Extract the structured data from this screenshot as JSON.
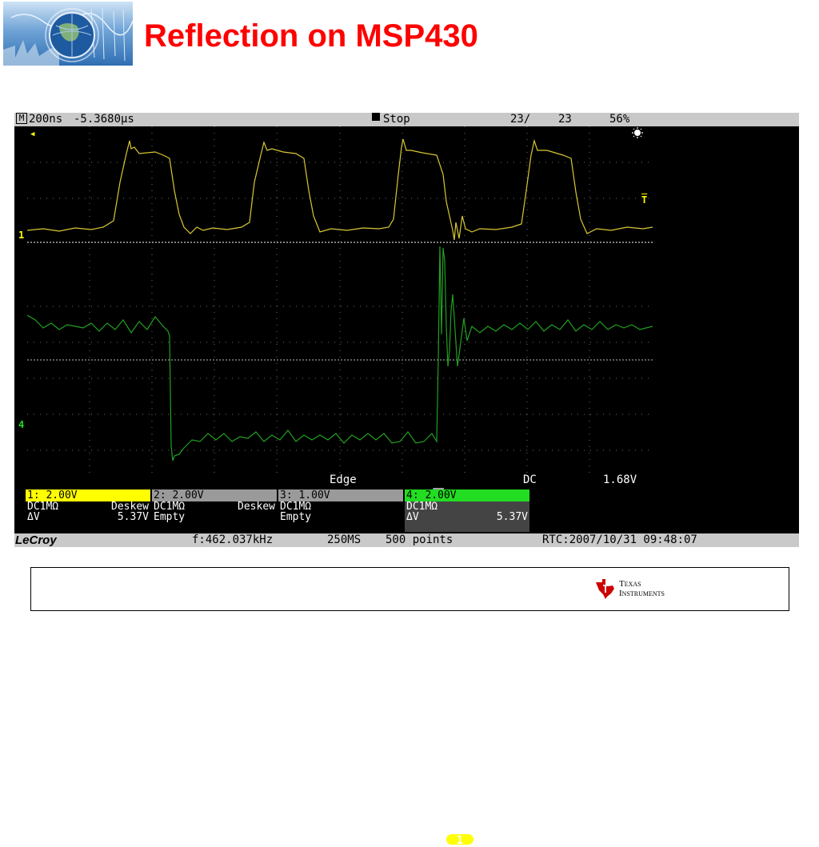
{
  "slide": {
    "title": "Reflection on MSP430"
  },
  "scope": {
    "top_bar": {
      "mode_icon": "M",
      "timebase": "200ns",
      "offset": "-5.3680µs",
      "status": "Stop",
      "sweeps": "23/",
      "sweeps_total": "23",
      "intensity": "56%"
    },
    "markers": {
      "ch1": "1",
      "ch4": "4",
      "trigger": "T"
    },
    "trigger": {
      "type": "Edge",
      "source": "1",
      "coupling": "DC",
      "level": "1.68V"
    },
    "channels": [
      {
        "header": "1: 2.00V",
        "line1_left": "DC1MΩ",
        "line1_right": "Deskew",
        "line2_left": "ΔV",
        "line2_right": "5.37V",
        "color": "#ffff00"
      },
      {
        "header": "2: 2.00V",
        "line1_left": "DC1MΩ",
        "line1_right": "Deskew",
        "line2_left": "Empty",
        "line2_right": "",
        "color": "#9a9a9a"
      },
      {
        "header": "3: 1.00V",
        "line1_left": "DC1MΩ",
        "line1_right": "",
        "line2_left": "Empty",
        "line2_right": "",
        "color": "#9a9a9a"
      },
      {
        "header": "4: 2.00V",
        "line1_left": "DC1MΩ",
        "line1_right": "",
        "line2_left": "ΔV",
        "line2_right": "5.37V",
        "color": "#22dd22"
      }
    ],
    "bottom_bar": {
      "brand": "LeCroy",
      "frequency": "f:462.037kHz",
      "sample_rate": "250MS",
      "points": "500 points",
      "rtc": "RTC:2007/10/31 09:48:07"
    },
    "colors": {
      "ch1_trace": "#d8c832",
      "ch4_trace": "#22a022",
      "grid": "#6a6a6a"
    }
  },
  "footer": {
    "company_line1": "Texas",
    "company_line2": "Instruments",
    "logo_icon": "texas-instruments-logo"
  }
}
